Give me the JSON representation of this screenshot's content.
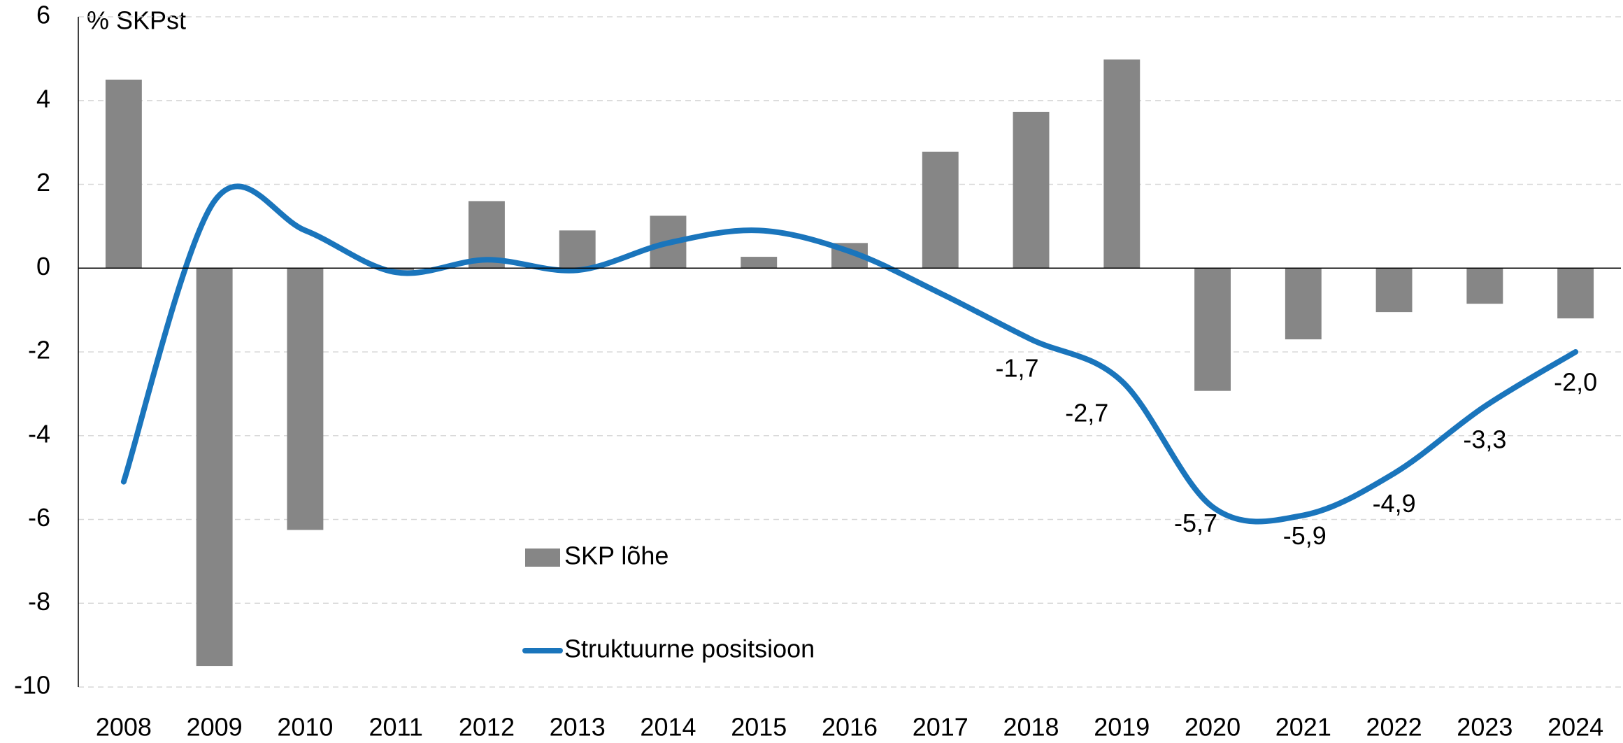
{
  "chart_data": {
    "type": "bar+line",
    "y_axis_label": "% SKPst",
    "categories": [
      "2008",
      "2009",
      "2010",
      "2011",
      "2012",
      "2013",
      "2014",
      "2015",
      "2016",
      "2017",
      "2018",
      "2019",
      "2020",
      "2021",
      "2022",
      "2023",
      "2024"
    ],
    "series": [
      {
        "name": "SKP lõhe",
        "type": "bar",
        "color": "#868686",
        "values": [
          4.5,
          -9.5,
          -6.25,
          -0.05,
          1.6,
          0.9,
          1.25,
          0.27,
          0.6,
          2.78,
          3.73,
          4.98,
          -2.93,
          -1.7,
          -1.05,
          -0.85,
          -1.2
        ]
      },
      {
        "name": "Struktuurne positsioon",
        "type": "line",
        "color": "#1a75bc",
        "values": [
          -5.1,
          1.6,
          0.9,
          -0.1,
          0.2,
          -0.05,
          0.6,
          0.9,
          0.4,
          -0.6,
          -1.7,
          -2.7,
          -5.7,
          -5.9,
          -4.9,
          -3.3,
          -2.0
        ],
        "value_labels": [
          null,
          null,
          null,
          null,
          null,
          null,
          null,
          null,
          null,
          null,
          "-1,7",
          "-2,7",
          "-5,7",
          "-5,9",
          "-4,9",
          "-3,3",
          "-2,0"
        ]
      }
    ],
    "ylim": [
      -10,
      6
    ],
    "yticks": [
      -10,
      -8,
      -6,
      -4,
      -2,
      0,
      2,
      4,
      6
    ],
    "grid": true
  }
}
